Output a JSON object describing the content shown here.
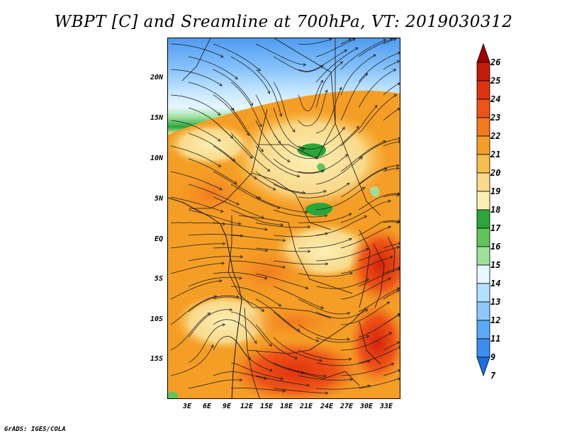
{
  "title": "WBPT [C] and Sreamline at 700hPa, VT: 2019030312",
  "footer": "GrADS: IGES/COLA",
  "axes": {
    "y_ticks": [
      "20N",
      "15N",
      "10N",
      "5N",
      "EQ",
      "5S",
      "10S",
      "15S"
    ],
    "x_ticks": [
      "3E",
      "6E",
      "9E",
      "12E",
      "15E",
      "18E",
      "21E",
      "24E",
      "27E",
      "30E",
      "33E"
    ]
  },
  "colorbar": {
    "labels": [
      "26",
      "25",
      "24",
      "23",
      "22",
      "21",
      "20",
      "19",
      "18",
      "17",
      "16",
      "15",
      "14",
      "13",
      "12",
      "11",
      "9",
      "7"
    ],
    "colors": [
      "#a00000",
      "#c41a0a",
      "#e0320e",
      "#ee5416",
      "#f2791e",
      "#f59e26",
      "#f7be4c",
      "#fad98a",
      "#fcefb4",
      "#2aa63a",
      "#5fc45a",
      "#9ee09a",
      "#e6f7ff",
      "#b4e0ff",
      "#8cc8ff",
      "#5aaaf8",
      "#3a8ef0",
      "#1e6fe0"
    ]
  }
}
